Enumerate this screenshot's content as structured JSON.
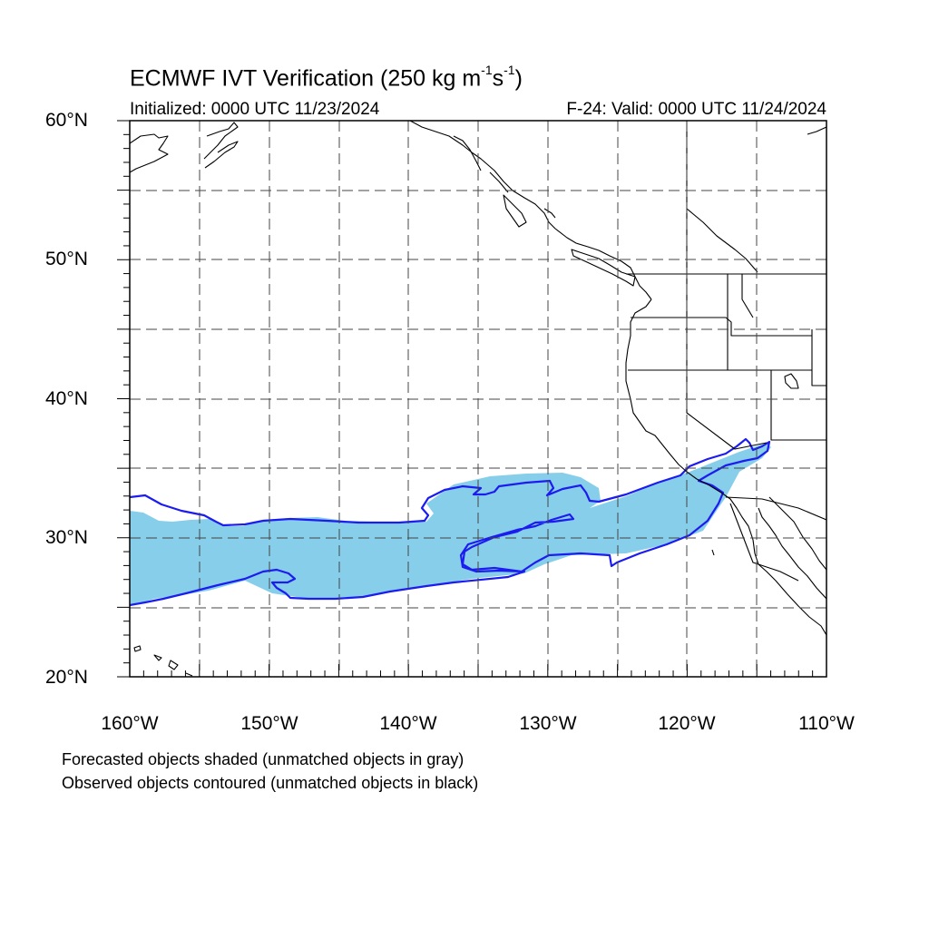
{
  "title": {
    "main": "ECMWF IVT Verification (250 kg m",
    "exp1": "-1",
    "mid": "s",
    "exp2": "-1",
    "end": ")"
  },
  "subtitle": {
    "initialized": "Initialized: 0000 UTC 11/23/2024",
    "valid": "F-24: Valid: 0000 UTC 11/24/2024"
  },
  "axes": {
    "lat_labels": [
      "60°N",
      "50°N",
      "40°N",
      "30°N",
      "20°N"
    ],
    "lon_labels": [
      "160°W",
      "150°W",
      "140°W",
      "130°W",
      "120°W",
      "110°W"
    ],
    "lat_range": [
      20,
      60
    ],
    "lon_range": [
      -160,
      -110
    ],
    "grid": "dashed, 5° spacing"
  },
  "legend": {
    "line1": "Forecasted objects shaded (unmatched objects in gray)",
    "line2": "Observed objects contoured (unmatched objects in black)"
  },
  "colors": {
    "forecast_fill": "#87ceeb",
    "observed_contour": "#1c1cf0",
    "coastline": "#000000",
    "grid": "#444444"
  }
}
